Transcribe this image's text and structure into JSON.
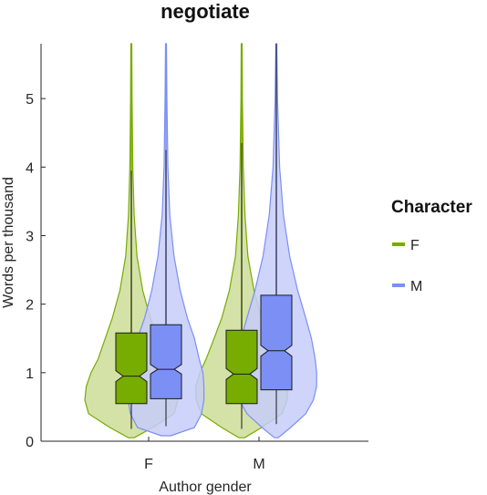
{
  "chart_data": {
    "type": "violin",
    "title": "negotiate",
    "xlabel": "Author gender",
    "ylabel": "Words per thousand",
    "categories": [
      "F",
      "M"
    ],
    "ylim": [
      0,
      5.8
    ],
    "yticks": [
      0,
      1,
      2,
      3,
      4,
      5
    ],
    "legend": {
      "title": "Character",
      "placement": "right"
    },
    "series": [
      {
        "name": "F",
        "color": "#77ac00",
        "fill_color": "#ccdd99",
        "box": [
          {
            "category": "F",
            "q1": 0.55,
            "median": 0.95,
            "q3": 1.58,
            "notch_low": 0.87,
            "notch_high": 1.03,
            "whisker_low": 0.18,
            "whisker_high": 3.95,
            "max_extent": 5.8
          },
          {
            "category": "M",
            "q1": 0.55,
            "median": 0.98,
            "q3": 1.62,
            "notch_low": 0.9,
            "notch_high": 1.06,
            "whisker_low": 0.18,
            "whisker_high": 4.35,
            "max_extent": 5.8
          }
        ],
        "violin": [
          {
            "category": "F",
            "density": [
              [
                0.05,
                0.06
              ],
              [
                0.2,
                0.45
              ],
              [
                0.4,
                0.9
              ],
              [
                0.6,
                0.98
              ],
              [
                0.8,
                0.95
              ],
              [
                1.0,
                0.85
              ],
              [
                1.2,
                0.7
              ],
              [
                1.5,
                0.55
              ],
              [
                1.8,
                0.4
              ],
              [
                2.2,
                0.24
              ],
              [
                2.7,
                0.12
              ],
              [
                3.3,
                0.06
              ],
              [
                4.0,
                0.03
              ],
              [
                5.0,
                0.015
              ],
              [
                5.8,
                0.01
              ]
            ]
          },
          {
            "category": "M",
            "density": [
              [
                0.05,
                0.06
              ],
              [
                0.2,
                0.42
              ],
              [
                0.4,
                0.85
              ],
              [
                0.6,
                0.96
              ],
              [
                0.8,
                0.97
              ],
              [
                1.0,
                0.88
              ],
              [
                1.2,
                0.75
              ],
              [
                1.5,
                0.58
              ],
              [
                1.8,
                0.42
              ],
              [
                2.2,
                0.26
              ],
              [
                2.7,
                0.13
              ],
              [
                3.3,
                0.07
              ],
              [
                4.0,
                0.035
              ],
              [
                5.0,
                0.015
              ],
              [
                5.8,
                0.01
              ]
            ]
          }
        ]
      },
      {
        "name": "M",
        "color": "#7b8ff5",
        "fill_color": "#c6cdf9",
        "box": [
          {
            "category": "F",
            "q1": 0.62,
            "median": 1.05,
            "q3": 1.7,
            "notch_low": 0.98,
            "notch_high": 1.12,
            "whisker_low": 0.22,
            "whisker_high": 4.25,
            "max_extent": 5.8
          },
          {
            "category": "M",
            "q1": 0.75,
            "median": 1.32,
            "q3": 2.13,
            "notch_low": 1.24,
            "notch_high": 1.4,
            "whisker_low": 0.25,
            "whisker_high": 5.8,
            "max_extent": 5.8
          }
        ],
        "violin": [
          {
            "category": "F",
            "density": [
              [
                0.08,
                0.1
              ],
              [
                0.2,
                0.6
              ],
              [
                0.4,
                0.75
              ],
              [
                0.6,
                0.8
              ],
              [
                0.8,
                0.8
              ],
              [
                1.0,
                0.78
              ],
              [
                1.2,
                0.7
              ],
              [
                1.5,
                0.6
              ],
              [
                1.8,
                0.45
              ],
              [
                2.2,
                0.3
              ],
              [
                2.7,
                0.17
              ],
              [
                3.3,
                0.08
              ],
              [
                4.0,
                0.04
              ],
              [
                5.0,
                0.02
              ],
              [
                5.8,
                0.01
              ]
            ]
          },
          {
            "category": "M",
            "density": [
              [
                0.05,
                0.04
              ],
              [
                0.2,
                0.3
              ],
              [
                0.4,
                0.62
              ],
              [
                0.6,
                0.78
              ],
              [
                0.8,
                0.85
              ],
              [
                1.0,
                0.85
              ],
              [
                1.2,
                0.82
              ],
              [
                1.5,
                0.74
              ],
              [
                1.8,
                0.62
              ],
              [
                2.2,
                0.45
              ],
              [
                2.7,
                0.28
              ],
              [
                3.3,
                0.15
              ],
              [
                4.0,
                0.07
              ],
              [
                5.0,
                0.025
              ],
              [
                5.8,
                0.01
              ]
            ]
          }
        ]
      }
    ]
  }
}
